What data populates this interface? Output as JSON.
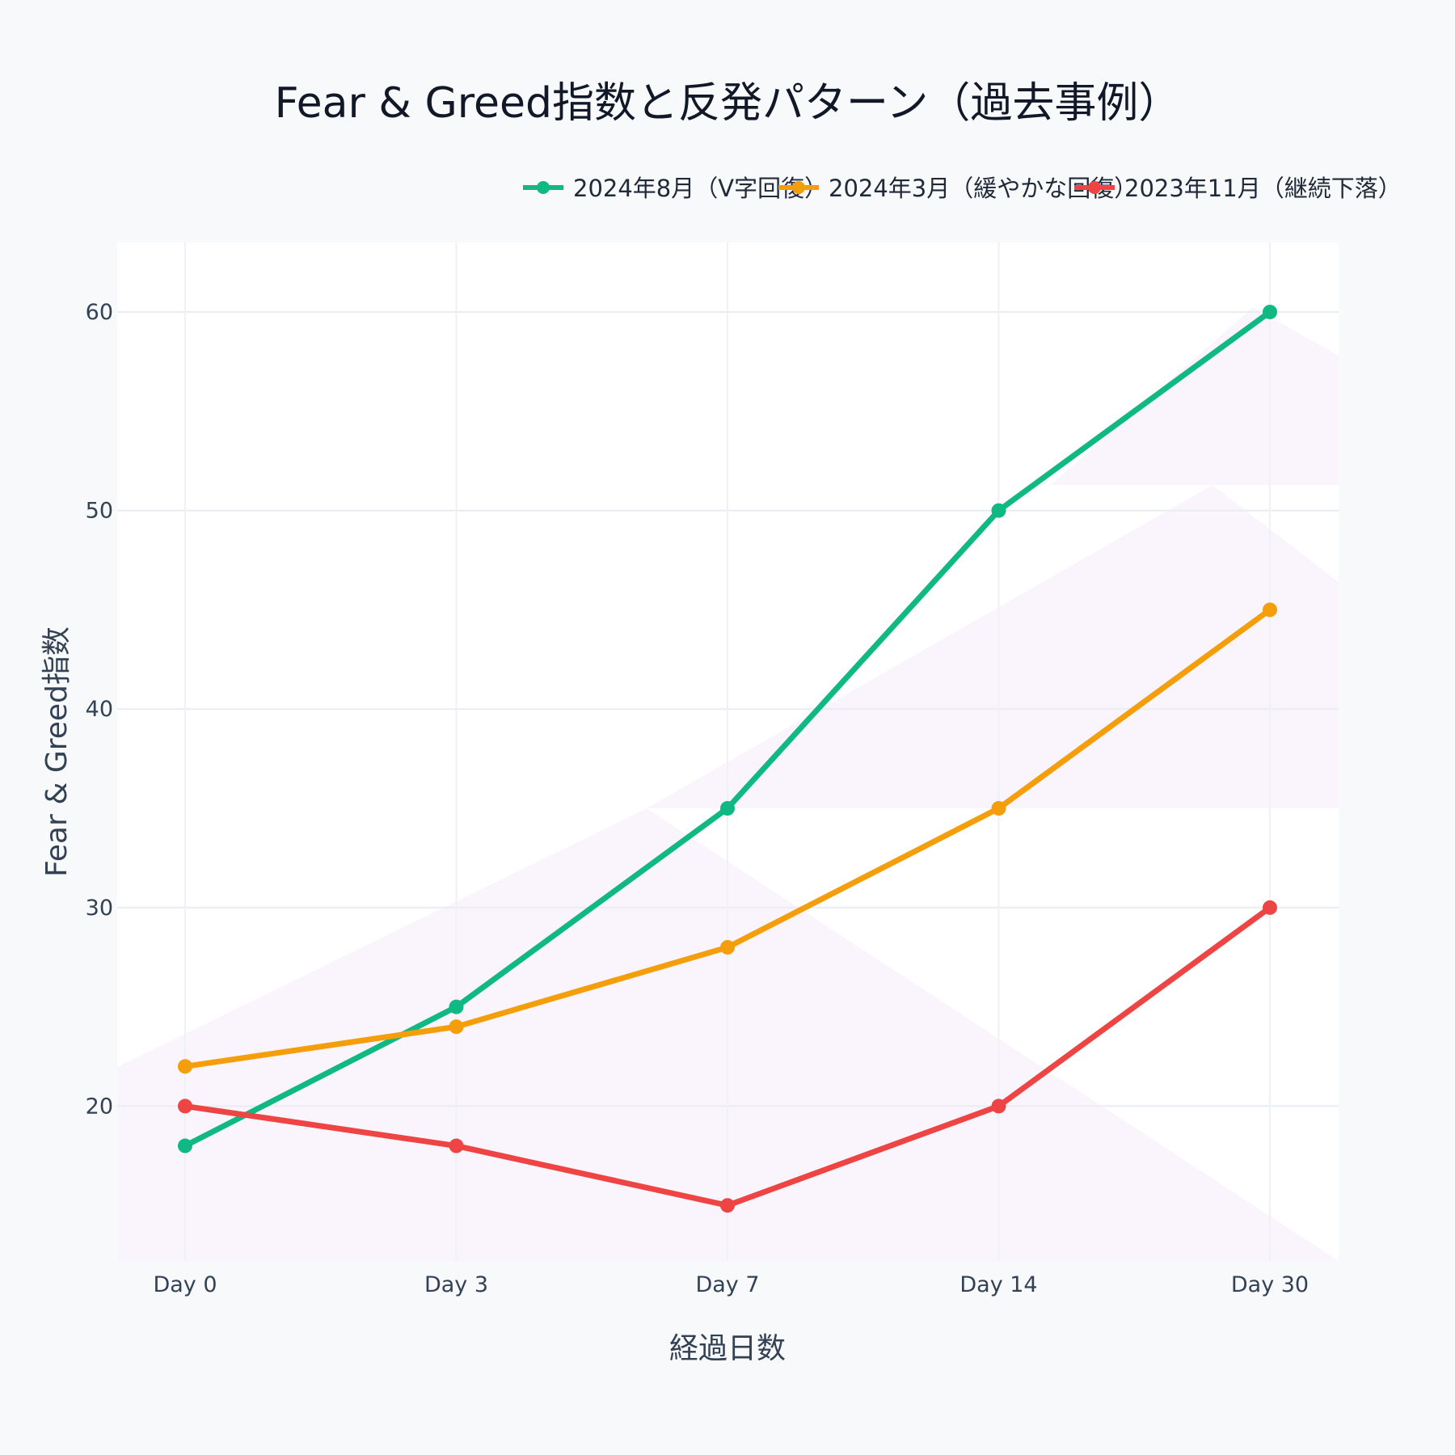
{
  "chart_data": {
    "type": "line",
    "title": "Fear & Greed指数と反発パターン（過去事例）",
    "xlabel": "経過日数",
    "ylabel": "Fear & Greed指数",
    "categories": [
      "Day 0",
      "Day 3",
      "Day 7",
      "Day 14",
      "Day 30"
    ],
    "yticks": [
      "20",
      "30",
      "40",
      "50",
      "60"
    ],
    "ylim": [
      12.2,
      63.5
    ],
    "grid": true,
    "legend_position": "top-right",
    "series": [
      {
        "name": "2024年8月（V字回復）",
        "color": "#10b981",
        "values": [
          18,
          25,
          35,
          50,
          60
        ]
      },
      {
        "name": "2024年3月（緩やかな回復）",
        "color": "#f59e0b",
        "values": [
          22,
          24,
          28,
          35,
          45
        ]
      },
      {
        "name": "2023年11月（継続下落）",
        "color": "#ef4444",
        "values": [
          20,
          18,
          15,
          20,
          30
        ]
      }
    ]
  }
}
